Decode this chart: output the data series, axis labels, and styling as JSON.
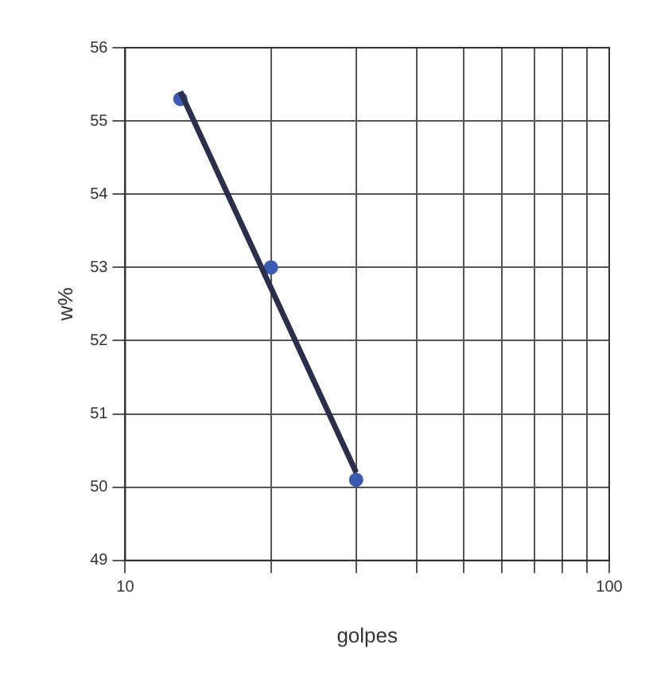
{
  "chart_data": {
    "type": "scatter",
    "xlabel": "golpes",
    "ylabel": "w%",
    "log": "x",
    "grid": true,
    "marker": "circle",
    "xlim": [
      10,
      100
    ],
    "xticks": [
      10,
      {
        "value": 20,
        "label": null
      },
      {
        "value": 30,
        "label": null
      },
      {
        "value": 40,
        "label": null
      },
      {
        "value": 50,
        "label": null
      },
      {
        "value": 60,
        "label": null
      },
      {
        "value": 70,
        "label": null
      },
      {
        "value": 80,
        "label": null
      },
      {
        "value": 90,
        "label": null
      },
      100
    ],
    "ylim": [
      49,
      56
    ],
    "yticks": [
      49,
      50,
      51,
      52,
      53,
      54,
      55,
      56
    ],
    "series": [
      {
        "type": "line",
        "color": "#2b2f4a",
        "x": [
          13,
          30
        ],
        "values": [
          55.4,
          50.2
        ],
        "marker": "none"
      },
      {
        "color": "#3b5bb0",
        "x": [
          13,
          20,
          30
        ],
        "values": [
          55.3,
          53.0,
          50.1
        ]
      }
    ]
  }
}
